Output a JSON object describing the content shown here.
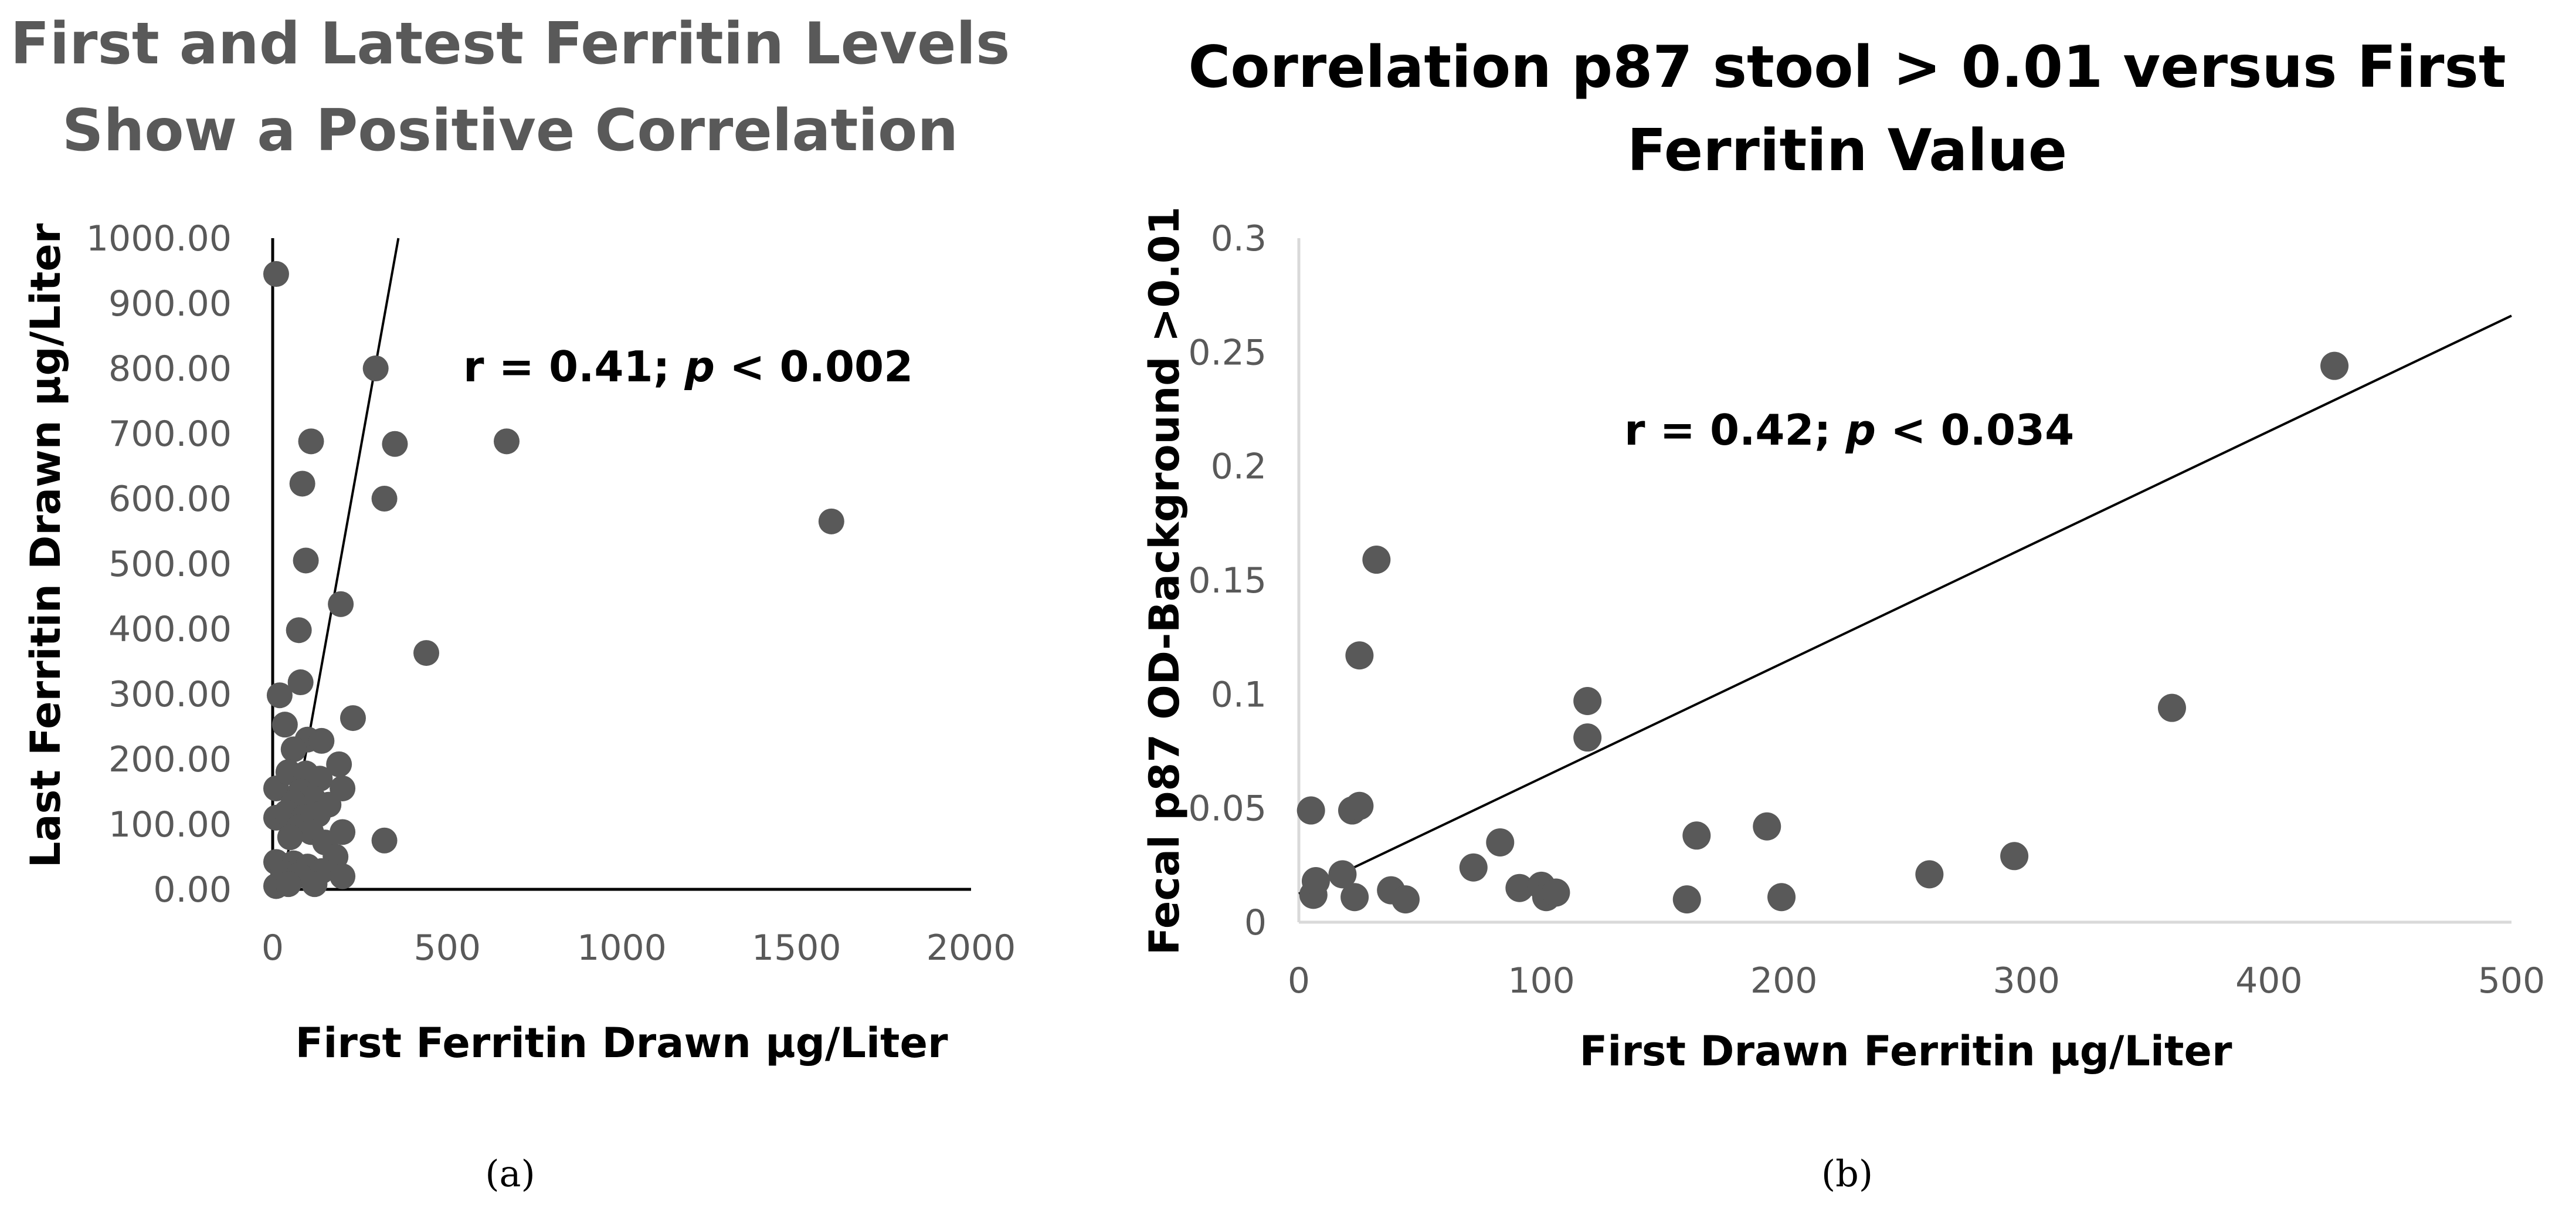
{
  "chart_data": [
    {
      "type": "scatter",
      "panel_label": "(a)",
      "title": [
        "First and Latest Ferritin Levels",
        "Show a Positive Correlation"
      ],
      "xlabel": "First Ferritin Drawn  µg/Liter",
      "ylabel": "Last Ferritin Drawn  µg/Liter",
      "xlim": [
        0,
        2000
      ],
      "ylim": [
        0,
        1000
      ],
      "x_ticks": [
        0,
        500,
        1000,
        1500,
        2000
      ],
      "x_tick_labels": [
        "0",
        "500",
        "1000",
        "1500",
        "2000"
      ],
      "y_ticks": [
        0,
        100,
        200,
        300,
        400,
        500,
        600,
        700,
        800,
        900,
        1000
      ],
      "y_tick_labels": [
        "0.00",
        "100.00",
        "200.00",
        "300.00",
        "400.00",
        "500.00",
        "600.00",
        "700.00",
        "800.00",
        "900.00",
        "1000.00"
      ],
      "annotation": {
        "prefix": "r = 0.41; ",
        "italic": "p",
        "suffix": " < 0.002"
      },
      "trendline": {
        "x": [
          25,
          360
        ],
        "y": [
          0,
          1000
        ]
      },
      "points": [
        [
          10,
          945
        ],
        [
          295,
          800
        ],
        [
          110,
          688
        ],
        [
          350,
          684
        ],
        [
          670,
          688
        ],
        [
          85,
          623
        ],
        [
          320,
          600
        ],
        [
          1600,
          565
        ],
        [
          95,
          505
        ],
        [
          195,
          438
        ],
        [
          75,
          398
        ],
        [
          440,
          363
        ],
        [
          80,
          318
        ],
        [
          20,
          298
        ],
        [
          35,
          253
        ],
        [
          230,
          263
        ],
        [
          100,
          230
        ],
        [
          140,
          228
        ],
        [
          60,
          215
        ],
        [
          10,
          155
        ],
        [
          190,
          192
        ],
        [
          45,
          180
        ],
        [
          95,
          178
        ],
        [
          135,
          170
        ],
        [
          200,
          155
        ],
        [
          80,
          150
        ],
        [
          115,
          140
        ],
        [
          60,
          133
        ],
        [
          160,
          130
        ],
        [
          10,
          110
        ],
        [
          40,
          118
        ],
        [
          90,
          110
        ],
        [
          130,
          115
        ],
        [
          75,
          95
        ],
        [
          110,
          88
        ],
        [
          200,
          88
        ],
        [
          50,
          80
        ],
        [
          150,
          72
        ],
        [
          320,
          75
        ],
        [
          180,
          50
        ],
        [
          10,
          42
        ],
        [
          60,
          40
        ],
        [
          100,
          35
        ],
        [
          140,
          28
        ],
        [
          30,
          25
        ],
        [
          75,
          22
        ],
        [
          200,
          20
        ],
        [
          10,
          5
        ],
        [
          45,
          8
        ],
        [
          120,
          8
        ]
      ]
    },
    {
      "type": "scatter",
      "panel_label": "(b)",
      "title": [
        "Correlation p87 stool > 0.01 versus First",
        "Ferritin Value"
      ],
      "xlabel": "First Drawn Ferritin µg/Liter",
      "ylabel": "Fecal p87 OD-Background >0.01",
      "xlim": [
        0,
        500
      ],
      "ylim": [
        0,
        0.3
      ],
      "x_ticks": [
        0,
        100,
        200,
        300,
        400,
        500
      ],
      "x_tick_labels": [
        "0",
        "100",
        "200",
        "300",
        "400",
        "500"
      ],
      "y_ticks": [
        0,
        0.05,
        0.1,
        0.15,
        0.2,
        0.25,
        0.3
      ],
      "y_tick_labels": [
        "0",
        "0.05",
        "0.1",
        "0.15",
        "0.2",
        "0.25",
        "0.3"
      ],
      "annotation": {
        "prefix": "r = 0.42; ",
        "italic": "p",
        "suffix": " < 0.034"
      },
      "trendline": {
        "x": [
          0,
          500
        ],
        "y": [
          0.0125,
          0.266
        ]
      },
      "points": [
        [
          5,
          0.049
        ],
        [
          6,
          0.012
        ],
        [
          7,
          0.018
        ],
        [
          18,
          0.021
        ],
        [
          22,
          0.049
        ],
        [
          23,
          0.011
        ],
        [
          25,
          0.051
        ],
        [
          25,
          0.117
        ],
        [
          32,
          0.159
        ],
        [
          38,
          0.014
        ],
        [
          44,
          0.01
        ],
        [
          72,
          0.024
        ],
        [
          83,
          0.035
        ],
        [
          91,
          0.015
        ],
        [
          100,
          0.016
        ],
        [
          102,
          0.011
        ],
        [
          106,
          0.013
        ],
        [
          119,
          0.097
        ],
        [
          119,
          0.081
        ],
        [
          160,
          0.01
        ],
        [
          164,
          0.038
        ],
        [
          193,
          0.042
        ],
        [
          199,
          0.011
        ],
        [
          260,
          0.021
        ],
        [
          295,
          0.029
        ],
        [
          360,
          0.094
        ],
        [
          427,
          0.244
        ]
      ]
    }
  ]
}
